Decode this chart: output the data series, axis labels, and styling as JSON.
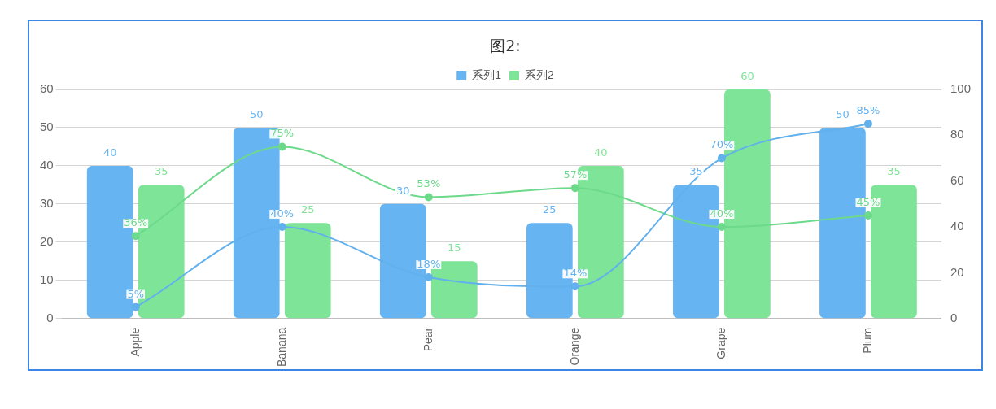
{
  "chart_data": {
    "type": "bar",
    "title": "图2:",
    "categories": [
      "Apple",
      "Banana",
      "Pear",
      "Orange",
      "Grape",
      "Plum"
    ],
    "series": [
      {
        "name": "系列1",
        "color": "#66b5f2",
        "values": [
          40,
          50,
          30,
          25,
          35,
          50
        ],
        "value_labels": [
          "40",
          "50",
          "30",
          "25",
          "35",
          "50"
        ]
      },
      {
        "name": "系列2",
        "color": "#7de498",
        "values": [
          35,
          25,
          15,
          40,
          60,
          35
        ],
        "value_labels": [
          "35",
          "25",
          "15",
          "40",
          "60",
          "35"
        ]
      },
      {
        "type": "line",
        "axis": "y2",
        "color": "#62b0ec",
        "values": [
          5,
          40,
          18,
          14,
          70,
          85
        ],
        "value_labels": [
          "5%",
          "40%",
          "18%",
          "14%",
          "70%",
          "85%"
        ],
        "marker": "circle"
      },
      {
        "type": "line",
        "axis": "y2",
        "color": "#6dd98a",
        "values": [
          36,
          75,
          53,
          57,
          40,
          45
        ],
        "value_labels": [
          "36%",
          "75%",
          "53%",
          "57%",
          "40%",
          "45%"
        ],
        "marker": "circle"
      }
    ],
    "ylim": [
      0,
      60
    ],
    "yticks": [
      0,
      10,
      20,
      30,
      40,
      50,
      60
    ],
    "y2lim": [
      0,
      100
    ],
    "y2ticks": [
      0,
      20,
      40,
      60,
      80,
      100
    ],
    "grid": "y",
    "legend": "top"
  }
}
